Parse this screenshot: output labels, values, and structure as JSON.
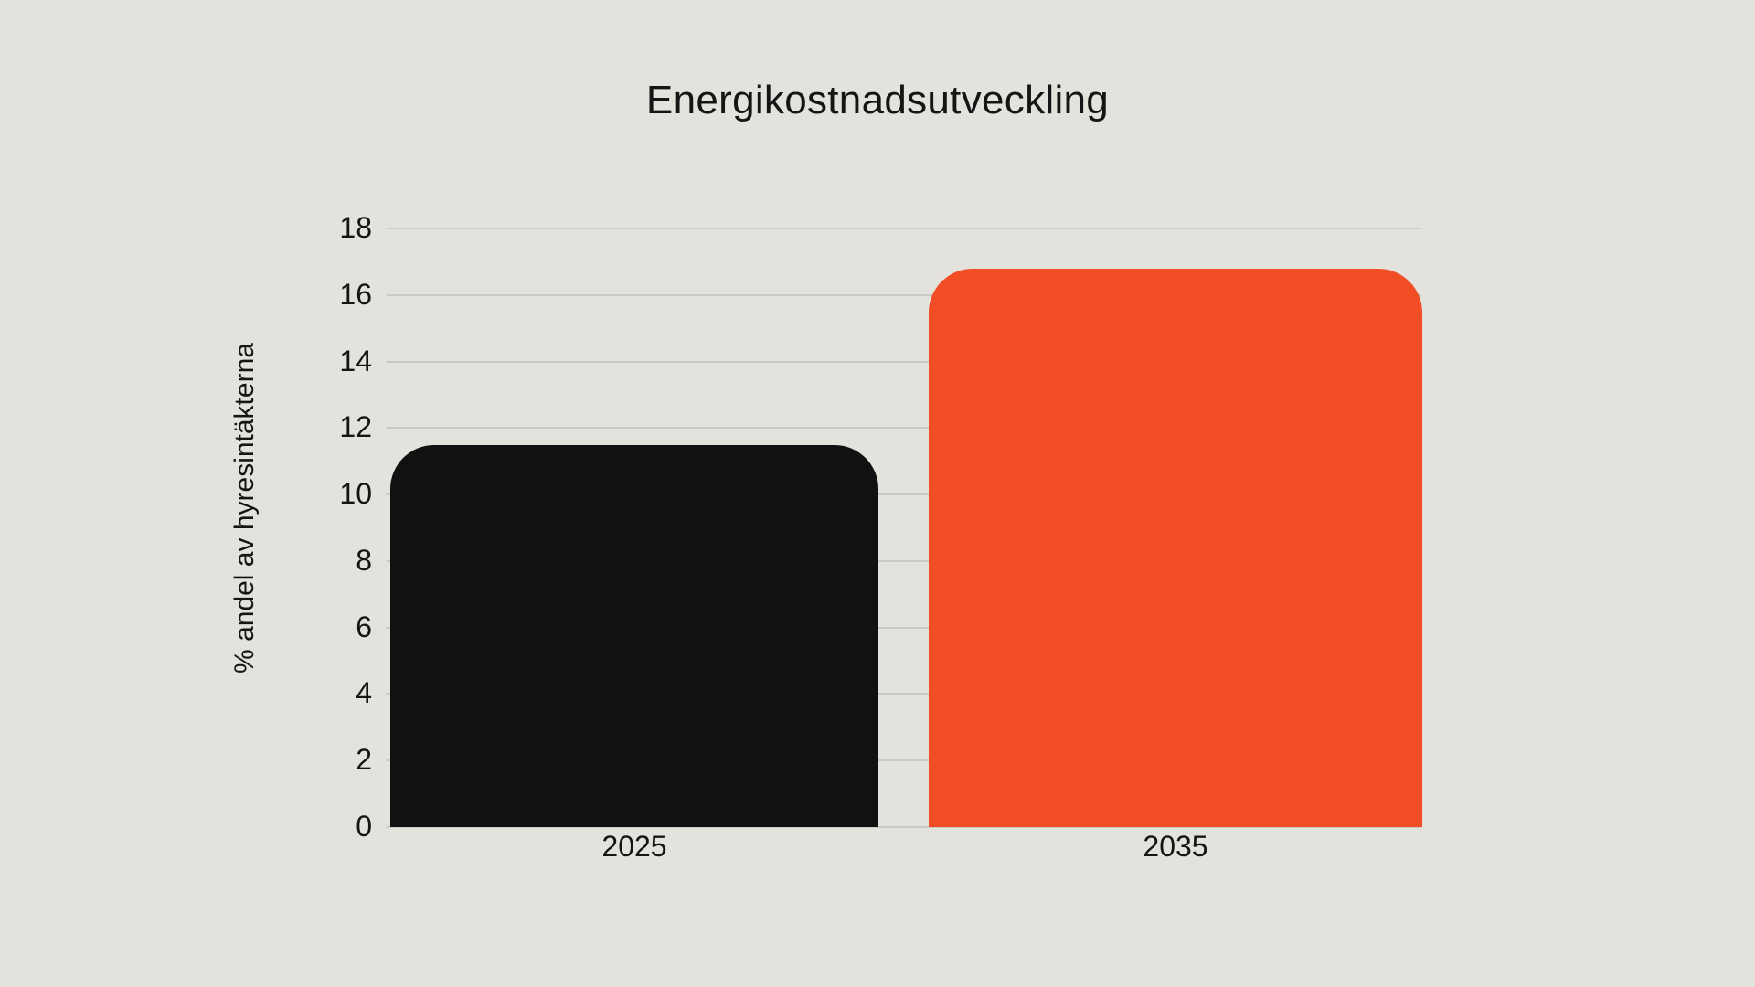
{
  "chart_data": {
    "type": "bar",
    "title": "Energikostnadsutveckling",
    "xlabel": "",
    "ylabel": "% andel av hyresintäkterna",
    "categories": [
      "2025",
      "2035"
    ],
    "values": [
      11.5,
      16.8
    ],
    "bar_colors": [
      "#111111",
      "#F24E26"
    ],
    "ylim": [
      0,
      18
    ],
    "yticks": [
      0,
      2,
      4,
      6,
      8,
      10,
      12,
      14,
      16,
      18
    ],
    "grid": "horizontal-only",
    "legend": "none",
    "background_color": "#E4E2DD",
    "gridline_color": "#CBC9C4",
    "text_color": "#151515"
  }
}
